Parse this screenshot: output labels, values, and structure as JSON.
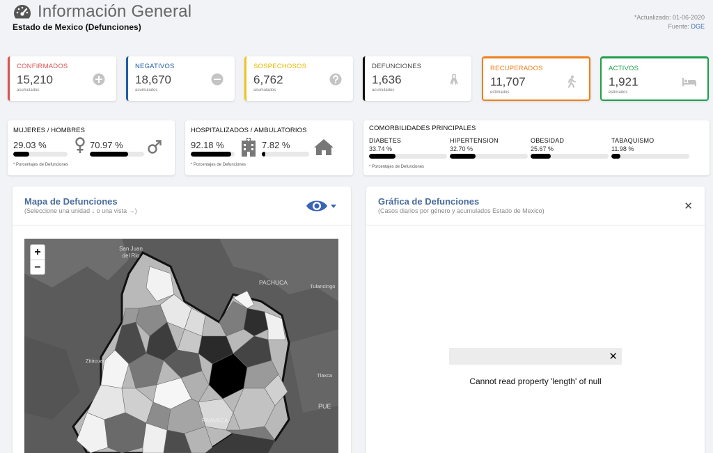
{
  "header": {
    "title": "Información General",
    "subtitle": "Estado de Mexico (Defunciones)",
    "updated": "*Actualizado: 01-06-2020",
    "source_label": "Fuente:",
    "source_link": "DGE"
  },
  "kpis": [
    {
      "label": "CONFIRMADOS",
      "value": "15,210",
      "caption": "acumulados",
      "icon": "plus-circle-icon",
      "color": "#d9534f"
    },
    {
      "label": "NEGATIVOS",
      "value": "18,670",
      "caption": "acumulados",
      "icon": "minus-circle-icon",
      "color": "#1f5fa6"
    },
    {
      "label": "SOSPECHOSOS",
      "value": "6,762",
      "caption": "acumulados",
      "icon": "question-circle-icon",
      "color": "#f0c419"
    },
    {
      "label": "DEFUNCIONES",
      "value": "1,636",
      "caption": "acumulados",
      "icon": "ribbon-icon",
      "color": "#111111"
    },
    {
      "label": "RECUPERADOS",
      "value": "11,707",
      "caption": "estimados",
      "icon": "walking-icon",
      "color": "#f07f1a"
    },
    {
      "label": "ACTIVOS",
      "value": "1,921",
      "caption": "estimados",
      "icon": "bed-icon",
      "color": "#1e9e4a"
    }
  ],
  "gender": {
    "label": "MUJERES / HOMBRES",
    "female_pct": "29.03 %",
    "female_value": 29.03,
    "male_pct": "70.97 %",
    "male_value": 70.97,
    "note": "* Porcentajes de Defunciones"
  },
  "hospital": {
    "label": "HOSPITALIZADOS / AMBULATORIOS",
    "hosp_pct": "92.18 %",
    "hosp_value": 92.18,
    "amb_pct": "7.82 %",
    "amb_value": 7.82,
    "note": "* Porcentajes de Defunciones"
  },
  "comorbidities": {
    "label": "COMORBILIDADES PRINCIPALES",
    "items": [
      {
        "name": "DIABETES",
        "pct": "33.74 %",
        "value": 33.74
      },
      {
        "name": "HIPERTENSION",
        "pct": "32.70 %",
        "value": 32.7
      },
      {
        "name": "OBESIDAD",
        "pct": "25.67 %",
        "value": 25.67
      },
      {
        "name": "TABAQUISMO",
        "pct": "11.98 %",
        "value": 11.98
      }
    ],
    "note": "* Porcentajes de Defunciones"
  },
  "map_panel": {
    "title": "Mapa de Defunciones",
    "subtitle": "(Seleccione una unidad ↓ o una vista →)",
    "zoom_in": "+",
    "zoom_out": "−",
    "places": [
      "San Juan del Rio",
      "PACHUCA",
      "Tulancingo",
      "Zitácuaro",
      "Tlaxca",
      "PUE",
      "RNAVACA"
    ]
  },
  "chart_panel": {
    "title": "Gráfica de Defunciones",
    "subtitle": "(Casos diarios por género y acumulados Estado de Mexico)",
    "close": "✕",
    "error_close": "✕",
    "error_message": "Cannot read property 'length' of null"
  }
}
